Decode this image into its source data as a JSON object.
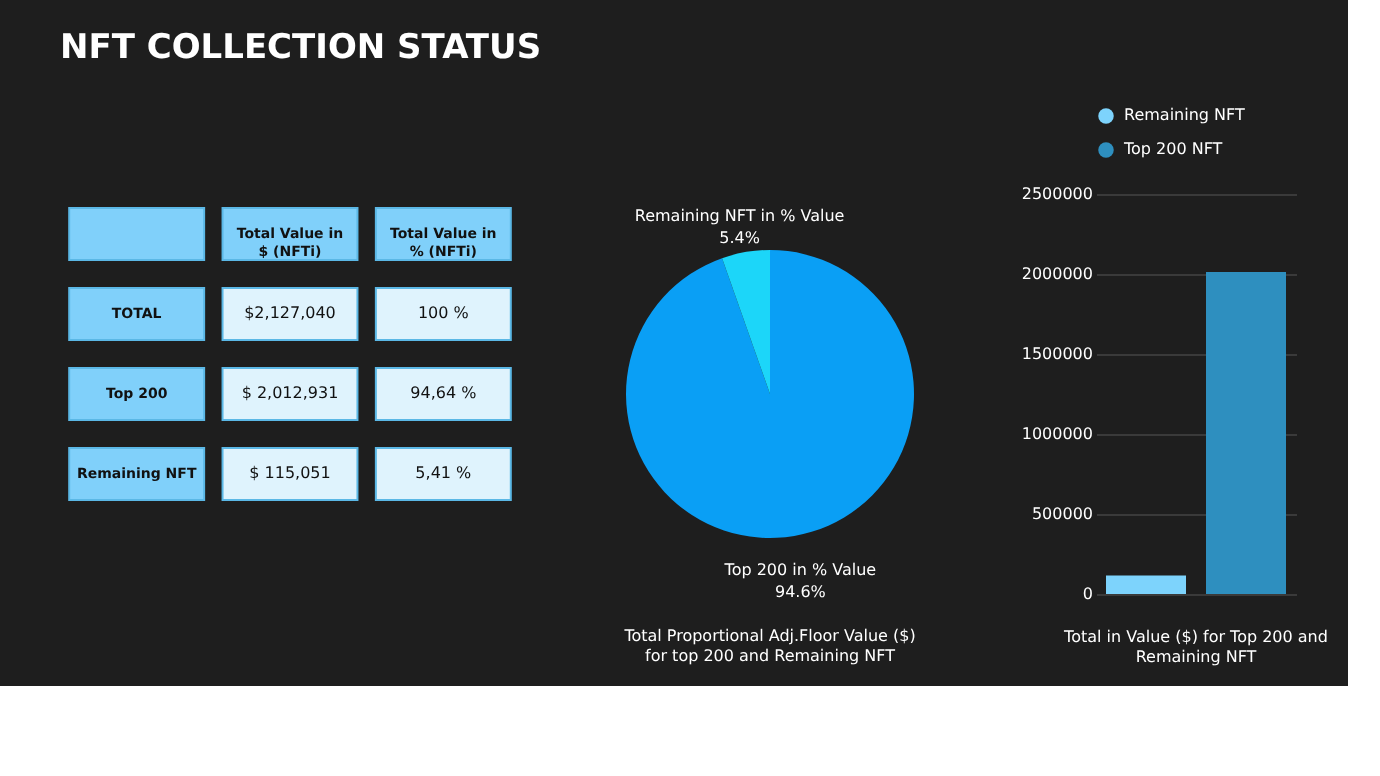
{
  "chart_data": [
    {
      "type": "other",
      "title": "NFT COLLECTION STATUS",
      "categories": [
        null,
        "Total Value in $ (NFTi)",
        "Total Value in % (NFTi)"
      ],
      "y_categories": [
        "TOTAL",
        "Top 200",
        "Remaining NFT"
      ],
      "cell_labels": [
        [
          "$2,127,040",
          "100 %"
        ],
        [
          "$ 2,012,931",
          "94,64 %"
        ],
        [
          "$ 115,051",
          "5,41 %"
        ]
      ]
    },
    {
      "type": "pie",
      "categories": [
        "Top 200 in % Value",
        "Remaining NFT in % Value"
      ],
      "values": [
        94.6,
        5.4
      ],
      "colors": [
        "#0a9ff5",
        "#1cd6f9"
      ],
      "value_labels": [
        "94.6%",
        "5.4%"
      ],
      "annotations": [
        "Total Proportional Adj.Floor Value ($) for top 200 and Remaining NFT"
      ]
    },
    {
      "type": "bar",
      "categories": [
        null,
        null
      ],
      "series": [
        {
          "name": "Remaining NFT",
          "color": "#7dd3fc",
          "values": [
            115051,
            null
          ]
        },
        {
          "name": "Top 200 NFT",
          "color": "#2e8fbf",
          "values": [
            null,
            2012931
          ]
        }
      ],
      "ylim": [
        0,
        2500000
      ],
      "yticks": [
        0,
        500000,
        1000000,
        1500000,
        2000000,
        2500000
      ],
      "grid": "y",
      "legend": "top",
      "annotations": [
        "Total in Value ($) for Top 200 and Remaining NFT"
      ]
    }
  ]
}
